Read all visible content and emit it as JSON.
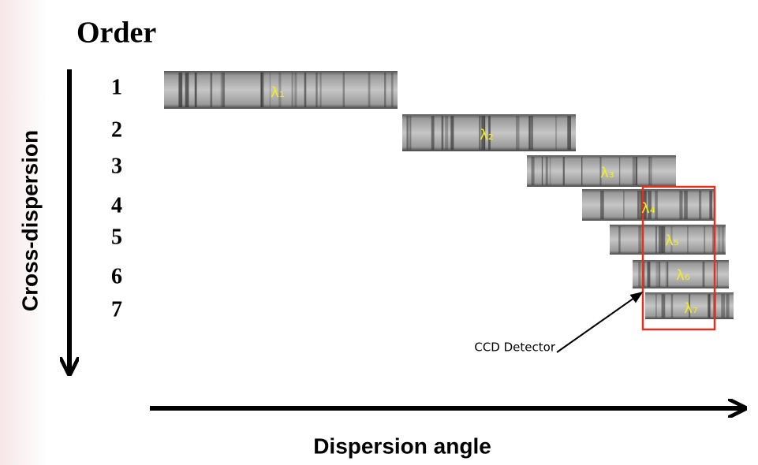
{
  "title": "Order",
  "y_axis_label": "Cross-dispersion",
  "x_axis_label": "Dispersion angle",
  "orders": [
    {
      "number": "1",
      "wavelength": "λ₁"
    },
    {
      "number": "2",
      "wavelength": "λ₂"
    },
    {
      "number": "3",
      "wavelength": "λ₃"
    },
    {
      "number": "4",
      "wavelength": "λ₄"
    },
    {
      "number": "5",
      "wavelength": "λ₅"
    },
    {
      "number": "6",
      "wavelength": "λ₆"
    },
    {
      "number": "7",
      "wavelength": "λ₇"
    }
  ],
  "detector_label": "CCD Detector"
}
